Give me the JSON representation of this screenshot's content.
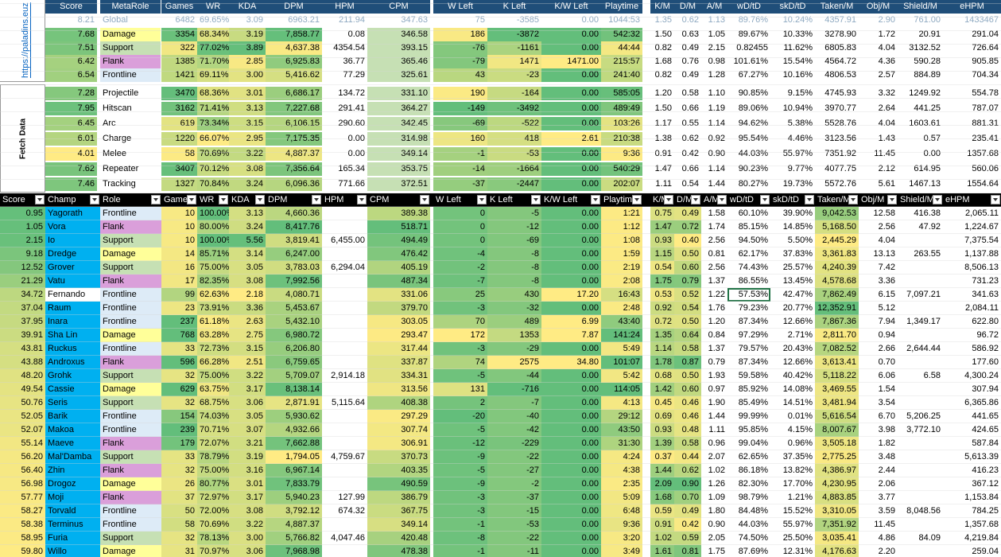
{
  "sidebar": {
    "link": "https://paladins.euz",
    "fetch": "Fetch Data"
  },
  "top_headers": [
    "Score",
    "MetaRole",
    "Games",
    "WR",
    "KDA",
    "DPM",
    "HPM",
    "CPM",
    "W Left",
    "K Left",
    "K/W Left",
    "Playtime",
    "K/M",
    "D/M",
    "A/M",
    "wD/tD",
    "skD/tD",
    "Taken/M",
    "Obj/M",
    "Shield/M",
    "eHPM"
  ],
  "global": [
    "8.21",
    "Global",
    "6482",
    "69.65%",
    "3.09",
    "6963.21",
    "211.94",
    "347.63",
    "75",
    "-3585",
    "0.00",
    "1044:53",
    "1.35",
    "0.62",
    "1.13",
    "89.76%",
    "10.24%",
    "4357.91",
    "2.90",
    "761.00",
    "1433467"
  ],
  "roles": [
    [
      "7.68",
      "Damage",
      "3354",
      "68.34%",
      "3.19",
      "7,858.77",
      "0.08",
      "346.58",
      "186",
      "-3872",
      "0.00",
      "542:32",
      "1.50",
      "0.63",
      "1.05",
      "89.67%",
      "10.33%",
      "3278.90",
      "1.72",
      "20.91",
      "291.04"
    ],
    [
      "7.51",
      "Support",
      "322",
      "77.02%",
      "3.89",
      "4,637.38",
      "4354.54",
      "393.15",
      "-76",
      "-1161",
      "0.00",
      "44:44",
      "0.82",
      "0.49",
      "2.15",
      "0.82455",
      "11.62%",
      "6805.83",
      "4.04",
      "3132.52",
      "726.64"
    ],
    [
      "6.42",
      "Flank",
      "1385",
      "71.70%",
      "2.85",
      "6,925.83",
      "36.77",
      "365.46",
      "-79",
      "1471",
      "1471.00",
      "215:57",
      "1.68",
      "0.76",
      "0.98",
      "101.61%",
      "15.54%",
      "4564.72",
      "4.36",
      "590.28",
      "905.85"
    ],
    [
      "6.54",
      "Frontline",
      "1421",
      "69.11%",
      "3.00",
      "5,416.62",
      "77.29",
      "325.61",
      "43",
      "-23",
      "0.00",
      "241:40",
      "0.82",
      "0.49",
      "1.28",
      "67.27%",
      "10.16%",
      "4806.53",
      "2.57",
      "884.89",
      "704.34"
    ]
  ],
  "types": [
    [
      "7.28",
      "Projectile",
      "3470",
      "68.36%",
      "3.01",
      "6,686.17",
      "134.72",
      "331.10",
      "190",
      "-164",
      "0.00",
      "585:05",
      "1.20",
      "0.58",
      "1.10",
      "90.85%",
      "9.15%",
      "4745.93",
      "3.32",
      "1249.92",
      "554.78"
    ],
    [
      "7.95",
      "Hitscan",
      "3162",
      "71.41%",
      "3.13",
      "7,227.68",
      "291.41",
      "364.27",
      "-149",
      "-3492",
      "0.00",
      "489:49",
      "1.50",
      "0.66",
      "1.19",
      "89.06%",
      "10.94%",
      "3970.77",
      "2.64",
      "441.25",
      "787.07"
    ],
    [
      "6.45",
      "Arc",
      "619",
      "73.34%",
      "3.15",
      "6,106.15",
      "290.60",
      "342.45",
      "-69",
      "-522",
      "0.00",
      "103:26",
      "1.17",
      "0.55",
      "1.14",
      "94.62%",
      "5.38%",
      "5528.76",
      "4.04",
      "1603.61",
      "881.31"
    ],
    [
      "6.01",
      "Charge",
      "1220",
      "66.07%",
      "2.95",
      "7,175.35",
      "0.00",
      "314.98",
      "160",
      "418",
      "2.61",
      "210:38",
      "1.38",
      "0.62",
      "0.92",
      "95.54%",
      "4.46%",
      "3123.56",
      "1.43",
      "0.57",
      "235.41"
    ],
    [
      "4.01",
      "Melee",
      "58",
      "70.69%",
      "3.22",
      "4,887.37",
      "0.00",
      "349.14",
      "-1",
      "-53",
      "0.00",
      "9:36",
      "0.91",
      "0.42",
      "0.90",
      "44.03%",
      "55.97%",
      "7351.92",
      "11.45",
      "0.00",
      "1357.68"
    ],
    [
      "7.62",
      "Repeater",
      "3407",
      "70.12%",
      "3.08",
      "7,356.64",
      "165.34",
      "353.75",
      "-14",
      "-1664",
      "0.00",
      "540:29",
      "1.47",
      "0.66",
      "1.14",
      "90.23%",
      "9.77%",
      "4077.75",
      "2.12",
      "614.95",
      "560.06"
    ],
    [
      "7.46",
      "Tracking",
      "1327",
      "70.84%",
      "3.24",
      "6,096.36",
      "771.66",
      "372.51",
      "-37",
      "-2447",
      "0.00",
      "202:07",
      "1.11",
      "0.54",
      "1.44",
      "80.27%",
      "19.73%",
      "5572.76",
      "5.61",
      "1467.13",
      "1554.64"
    ]
  ],
  "table_headers": [
    "Score",
    "Champ",
    "Role",
    "Games",
    "WR",
    "KDA",
    "DPM",
    "HPM",
    "CPM",
    "W Left",
    "K Left",
    "K/W Left",
    "Playtime",
    "K/M",
    "D/M",
    "A/M",
    "wD/tD",
    "skD/tD",
    "Taken/M",
    "Obj/M",
    "Shield/M",
    "eHPM"
  ],
  "champs": [
    [
      "0.95",
      "Yagorath",
      "Frontline",
      "10",
      "100.00%",
      "3.13",
      "4,660.36",
      "",
      "389.38",
      "0",
      "-5",
      "0.00",
      "1:21",
      "0.75",
      "0.49",
      "1.58",
      "60.10%",
      "39.90%",
      "9,042.53",
      "12.58",
      "416.38",
      "2,065.11"
    ],
    [
      "1.05",
      "Vora",
      "Flank",
      "10",
      "80.00%",
      "3.24",
      "8,417.76",
      "",
      "518.71",
      "0",
      "-12",
      "0.00",
      "1:12",
      "1.47",
      "0.72",
      "1.74",
      "85.15%",
      "14.85%",
      "5,168.50",
      "2.56",
      "47.92",
      "1,224.67"
    ],
    [
      "2.15",
      "Io",
      "Support",
      "10",
      "100.00%",
      "5.56",
      "3,819.41",
      "6,455.00",
      "494.49",
      "0",
      "-69",
      "0.00",
      "1:08",
      "0.93",
      "0.40",
      "2.56",
      "94.50%",
      "5.50%",
      "2,445.29",
      "4.04",
      "",
      "7,375.54"
    ],
    [
      "9.18",
      "Dredge",
      "Damage",
      "14",
      "85.71%",
      "3.14",
      "6,247.00",
      "",
      "476.42",
      "-4",
      "-8",
      "0.00",
      "1:59",
      "1.15",
      "0.50",
      "0.81",
      "62.17%",
      "37.83%",
      "3,361.83",
      "13.13",
      "263.55",
      "1,137.88"
    ],
    [
      "12.52",
      "Grover",
      "Support",
      "16",
      "75.00%",
      "3.05",
      "3,783.03",
      "6,294.04",
      "405.19",
      "-2",
      "-8",
      "0.00",
      "2:19",
      "0.54",
      "0.60",
      "2.56",
      "74.43%",
      "25.57%",
      "4,240.39",
      "7.42",
      "",
      "8,506.13"
    ],
    [
      "21.29",
      "Vatu",
      "Flank",
      "17",
      "82.35%",
      "3.08",
      "7,992.56",
      "",
      "487.34",
      "-7",
      "-8",
      "0.00",
      "2:08",
      "1.75",
      "0.79",
      "1.37",
      "86.55%",
      "13.45%",
      "4,578.68",
      "3.36",
      "",
      "731.23"
    ],
    [
      "34.72",
      "Fernando",
      "Frontline",
      "99",
      "62.63%",
      "2.18",
      "4,080.71",
      "",
      "331.06",
      "25",
      "430",
      "17.20",
      "16:43",
      "0.53",
      "0.52",
      "1.22",
      "57.53%",
      "42.47%",
      "7,862.49",
      "6.15",
      "7,097.21",
      "341.63"
    ],
    [
      "37.04",
      "Raum",
      "Frontline",
      "23",
      "73.91%",
      "3.36",
      "5,453.67",
      "",
      "379.70",
      "-3",
      "-32",
      "0.00",
      "2:48",
      "0.92",
      "0.54",
      "1.76",
      "79.23%",
      "20.77%",
      "12,352.91",
      "5.12",
      "",
      "2,084.11"
    ],
    [
      "37.95",
      "Inara",
      "Frontline",
      "237",
      "61.18%",
      "2.63",
      "5,432.10",
      "",
      "303.05",
      "70",
      "489",
      "6.99",
      "43:40",
      "0.72",
      "0.50",
      "1.20",
      "87.34%",
      "12.66%",
      "7,867.36",
      "7.94",
      "1,349.17",
      "622.80"
    ],
    [
      "39.91",
      "Sha Lin",
      "Damage",
      "768",
      "63.28%",
      "2.75",
      "6,980.72",
      "",
      "293.47",
      "172",
      "1353",
      "7.87",
      "141:24",
      "1.35",
      "0.64",
      "0.84",
      "97.29%",
      "2.71%",
      "2,811.70",
      "0.94",
      "",
      "96.72"
    ],
    [
      "43.81",
      "Ruckus",
      "Frontline",
      "33",
      "72.73%",
      "3.15",
      "6,206.80",
      "",
      "317.44",
      "-3",
      "-29",
      "0.00",
      "5:49",
      "1.14",
      "0.58",
      "1.37",
      "79.57%",
      "20.43%",
      "7,082.52",
      "2.66",
      "2,644.44",
      "586.92"
    ],
    [
      "43.88",
      "Androxus",
      "Flank",
      "596",
      "66.28%",
      "2.51",
      "6,759.65",
      "",
      "337.87",
      "74",
      "2575",
      "34.80",
      "101:07",
      "1.78",
      "0.87",
      "0.79",
      "87.34%",
      "12.66%",
      "3,613.41",
      "0.70",
      "",
      "177.60"
    ],
    [
      "48.20",
      "Grohk",
      "Support",
      "32",
      "75.00%",
      "3.22",
      "5,709.07",
      "2,914.18",
      "334.31",
      "-5",
      "-44",
      "0.00",
      "5:42",
      "0.68",
      "0.50",
      "1.93",
      "59.58%",
      "40.42%",
      "5,118.22",
      "6.06",
      "6.58",
      "4,300.24"
    ],
    [
      "49.54",
      "Cassie",
      "Damage",
      "629",
      "63.75%",
      "3.17",
      "8,138.14",
      "",
      "313.56",
      "131",
      "-716",
      "0.00",
      "114:05",
      "1.42",
      "0.60",
      "0.97",
      "85.92%",
      "14.08%",
      "3,469.55",
      "1.54",
      "",
      "307.94"
    ],
    [
      "50.76",
      "Seris",
      "Support",
      "32",
      "68.75%",
      "3.06",
      "2,871.91",
      "5,115.64",
      "408.38",
      "2",
      "-7",
      "0.00",
      "4:13",
      "0.45",
      "0.46",
      "1.90",
      "85.49%",
      "14.51%",
      "3,481.94",
      "3.54",
      "",
      "6,365.86"
    ],
    [
      "52.05",
      "Barik",
      "Frontline",
      "154",
      "74.03%",
      "3.05",
      "5,930.62",
      "",
      "297.29",
      "-20",
      "-40",
      "0.00",
      "29:12",
      "0.69",
      "0.46",
      "1.44",
      "99.99%",
      "0.01%",
      "5,616.54",
      "6.70",
      "5,206.25",
      "441.65"
    ],
    [
      "52.07",
      "Makoa",
      "Frontline",
      "239",
      "70.71%",
      "3.07",
      "4,932.66",
      "",
      "307.74",
      "-5",
      "-42",
      "0.00",
      "43:50",
      "0.93",
      "0.48",
      "1.11",
      "95.85%",
      "4.15%",
      "8,007.67",
      "3.98",
      "3,772.10",
      "424.65"
    ],
    [
      "55.14",
      "Maeve",
      "Flank",
      "179",
      "72.07%",
      "3.21",
      "7,662.88",
      "",
      "306.91",
      "-12",
      "-229",
      "0.00",
      "31:30",
      "1.39",
      "0.58",
      "0.96",
      "99.04%",
      "0.96%",
      "3,505.18",
      "1.82",
      "",
      "587.84"
    ],
    [
      "56.20",
      "Mal'Damba",
      "Support",
      "33",
      "78.79%",
      "3.19",
      "1,794.05",
      "4,759.67",
      "370.73",
      "-9",
      "-22",
      "0.00",
      "4:24",
      "0.37",
      "0.44",
      "2.07",
      "62.65%",
      "37.35%",
      "2,775.25",
      "3.48",
      "",
      "5,613.39"
    ],
    [
      "56.40",
      "Zhin",
      "Flank",
      "32",
      "75.00%",
      "3.16",
      "6,967.14",
      "",
      "403.35",
      "-5",
      "-27",
      "0.00",
      "4:38",
      "1.44",
      "0.62",
      "1.02",
      "86.18%",
      "13.82%",
      "4,386.97",
      "2.44",
      "",
      "416.23"
    ],
    [
      "56.98",
      "Drogoz",
      "Damage",
      "26",
      "80.77%",
      "3.01",
      "7,833.79",
      "",
      "490.59",
      "-9",
      "-2",
      "0.00",
      "2:35",
      "2.09",
      "0.90",
      "1.26",
      "82.30%",
      "17.70%",
      "4,230.95",
      "2.06",
      "",
      "367.12"
    ],
    [
      "57.77",
      "Moji",
      "Flank",
      "37",
      "72.97%",
      "3.17",
      "5,940.23",
      "127.99",
      "386.79",
      "-3",
      "-37",
      "0.00",
      "5:09",
      "1.68",
      "0.70",
      "1.09",
      "98.79%",
      "1.21%",
      "4,883.85",
      "3.77",
      "",
      "1,153.84"
    ],
    [
      "58.27",
      "Torvald",
      "Frontline",
      "50",
      "72.00%",
      "3.08",
      "3,792.12",
      "674.32",
      "367.75",
      "-3",
      "-15",
      "0.00",
      "6:48",
      "0.59",
      "0.49",
      "1.80",
      "84.48%",
      "15.52%",
      "3,310.05",
      "3.59",
      "8,048.56",
      "784.25"
    ],
    [
      "58.38",
      "Terminus",
      "Frontline",
      "58",
      "70.69%",
      "3.22",
      "4,887.37",
      "",
      "349.14",
      "-1",
      "-53",
      "0.00",
      "9:36",
      "0.91",
      "0.42",
      "0.90",
      "44.03%",
      "55.97%",
      "7,351.92",
      "11.45",
      "",
      "1,357.68"
    ],
    [
      "58.95",
      "Furia",
      "Support",
      "32",
      "78.13%",
      "3.00",
      "5,766.82",
      "4,047.46",
      "420.48",
      "-8",
      "-22",
      "0.00",
      "3:20",
      "1.02",
      "0.59",
      "2.05",
      "74.50%",
      "25.50%",
      "3,035.41",
      "4.86",
      "84.09",
      "4,219.84"
    ],
    [
      "59.80",
      "Willo",
      "Damage",
      "31",
      "70.97%",
      "3.06",
      "7,968.98",
      "",
      "478.38",
      "-1",
      "-11",
      "0.00",
      "3:49",
      "1.61",
      "0.81",
      "1.75",
      "87.69%",
      "12.31%",
      "4,176.63",
      "2.20",
      "",
      "259.04"
    ]
  ],
  "colors": {
    "header_bg": "#1f4e79",
    "damage": "#ffff99",
    "support": "#c6e0b4",
    "flank": "#da9fda",
    "frontline": "#ddebf7",
    "champ_blue": "#00b0f0",
    "green": "#63be7b",
    "yellow": "#ffeb84"
  }
}
